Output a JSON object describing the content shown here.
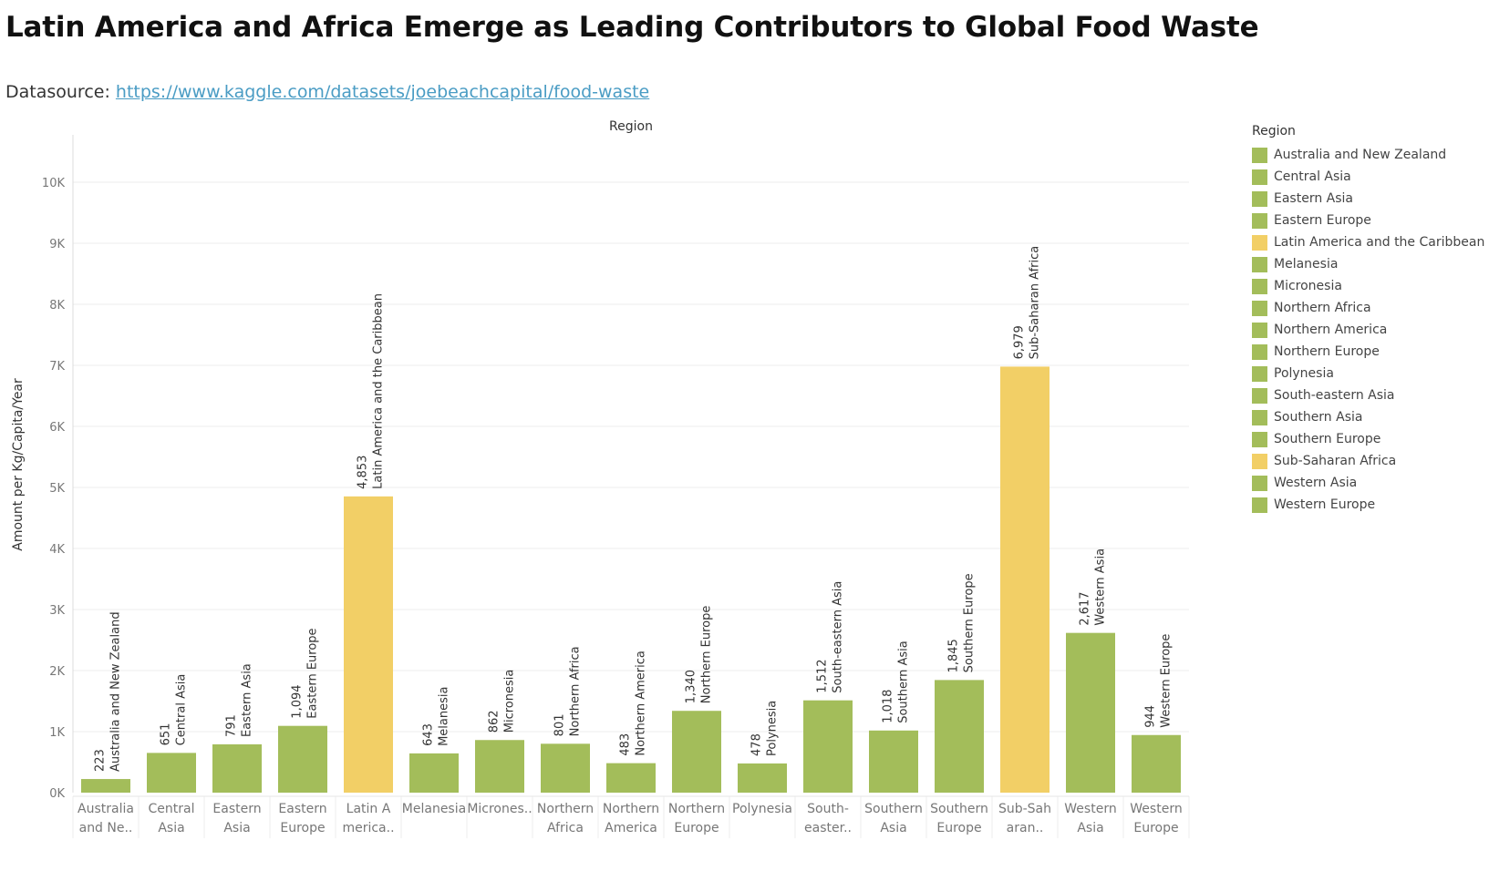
{
  "title": "Latin America and Africa Emerge as Leading Contributors to Global Food Waste",
  "subtitle": {
    "prefix": "Datasource: ",
    "link_text": "https://www.kaggle.com/datasets/joebeachcapital/food-waste"
  },
  "colors": {
    "green": "#a3bd5a",
    "yellow": "#f2cf66"
  },
  "chart_data": {
    "type": "bar",
    "column_header": "Region",
    "ylabel": "Amount per Kg/Capita/Year",
    "ylim": [
      0,
      10500
    ],
    "yticks": [
      0,
      1000,
      2000,
      3000,
      4000,
      5000,
      6000,
      7000,
      8000,
      9000,
      10000
    ],
    "ytick_labels": [
      "0K",
      "1K",
      "2K",
      "3K",
      "4K",
      "5K",
      "6K",
      "7K",
      "8K",
      "9K",
      "10K"
    ],
    "grid": true,
    "legend_placement": "right",
    "legend_title": "Region",
    "categories": [
      "Australia and New Zealand",
      "Central Asia",
      "Eastern Asia",
      "Eastern Europe",
      "Latin America and the Caribbean",
      "Melanesia",
      "Micronesia",
      "Northern Africa",
      "Northern America",
      "Northern Europe",
      "Polynesia",
      "South-eastern Asia",
      "Southern Asia",
      "Southern Europe",
      "Sub-Saharan Africa",
      "Western Asia",
      "Western Europe"
    ],
    "axis_labels": [
      [
        "Australia",
        "and Ne.."
      ],
      [
        "Central",
        "Asia"
      ],
      [
        "Eastern",
        "Asia"
      ],
      [
        "Eastern",
        "Europe"
      ],
      [
        "Latin A",
        "merica.."
      ],
      [
        "Melanesia"
      ],
      [
        "Micrones.."
      ],
      [
        "Northern",
        "Africa"
      ],
      [
        "Northern",
        "America"
      ],
      [
        "Northern",
        "Europe"
      ],
      [
        "Polynesia"
      ],
      [
        "South-",
        "easter.."
      ],
      [
        "Southern",
        "Asia"
      ],
      [
        "Southern",
        "Europe"
      ],
      [
        "Sub-Sah",
        "aran.."
      ],
      [
        "Western",
        "Asia"
      ],
      [
        "Western",
        "Europe"
      ]
    ],
    "values": [
      223,
      651,
      791,
      1094,
      4853,
      643,
      862,
      801,
      483,
      1340,
      478,
      1512,
      1018,
      1845,
      6979,
      2617,
      944
    ],
    "value_labels": [
      "223",
      "651",
      "791",
      "1,094",
      "4,853",
      "643",
      "862",
      "801",
      "483",
      "1,340",
      "478",
      "1,512",
      "1,018",
      "1,845",
      "6,979",
      "2,617",
      "944"
    ],
    "highlight": [
      "Latin America and the Caribbean",
      "Sub-Saharan Africa"
    ]
  }
}
